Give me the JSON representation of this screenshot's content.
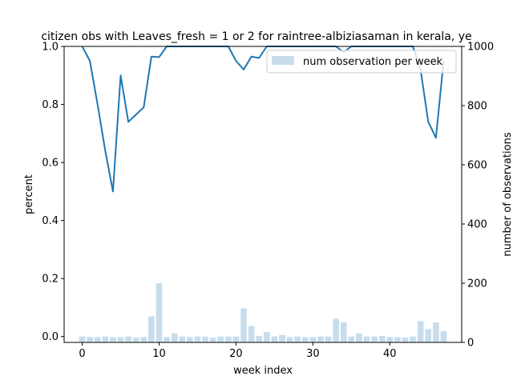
{
  "chart_data": {
    "type": "bar+line",
    "title": "citizen obs with Leaves_fresh = 1 or 2 for raintree-albiziasaman in kerala, ye",
    "xlabel": "week index",
    "ylabel_left": "percent",
    "ylabel_right": "number of observations",
    "xlim": [
      -2.35,
      49.35
    ],
    "ylim_left": [
      -0.02,
      1.0
    ],
    "ylim_right": [
      0,
      1000
    ],
    "xticks": [
      0,
      10,
      20,
      30,
      40
    ],
    "yticks_left": [
      "0.0",
      "0.2",
      "0.4",
      "0.6",
      "0.8",
      "1.0"
    ],
    "yticks_right": [
      "0",
      "200",
      "400",
      "600",
      "800",
      "1000"
    ],
    "legend": {
      "position": "top-right",
      "label": "num observation per week"
    },
    "colors": {
      "line": "#1f77b4",
      "bar": "#1f77b4",
      "bar_alpha": 0.25
    },
    "weeks": [
      0,
      1,
      2,
      3,
      4,
      5,
      6,
      7,
      8,
      9,
      10,
      11,
      12,
      13,
      14,
      15,
      16,
      17,
      18,
      19,
      20,
      21,
      22,
      23,
      24,
      25,
      26,
      27,
      28,
      29,
      30,
      31,
      32,
      33,
      34,
      35,
      36,
      37,
      38,
      39,
      40,
      41,
      42,
      43,
      44,
      45,
      46,
      47
    ],
    "percent": [
      1.0,
      0.95,
      0.8,
      0.64,
      0.5,
      0.9,
      0.74,
      0.765,
      0.79,
      0.965,
      0.963,
      1.0,
      1.0,
      1.0,
      1.0,
      1.0,
      1.0,
      1.0,
      1.0,
      1.0,
      0.95,
      0.92,
      0.965,
      0.96,
      1.0,
      1.0,
      1.0,
      1.0,
      1.0,
      1.0,
      1.0,
      1.0,
      1.0,
      1.0,
      0.98,
      1.0,
      1.0,
      1.0,
      1.0,
      1.0,
      1.0,
      1.0,
      1.0,
      1.0,
      0.92,
      0.74,
      0.685,
      0.95
    ],
    "num_observations": [
      20,
      18,
      18,
      20,
      18,
      18,
      20,
      16,
      18,
      88,
      200,
      18,
      30,
      20,
      18,
      20,
      20,
      16,
      20,
      20,
      20,
      115,
      55,
      22,
      35,
      20,
      25,
      18,
      20,
      18,
      18,
      20,
      20,
      80,
      68,
      20,
      30,
      20,
      20,
      22,
      18,
      18,
      16,
      20,
      72,
      45,
      68,
      38
    ]
  }
}
